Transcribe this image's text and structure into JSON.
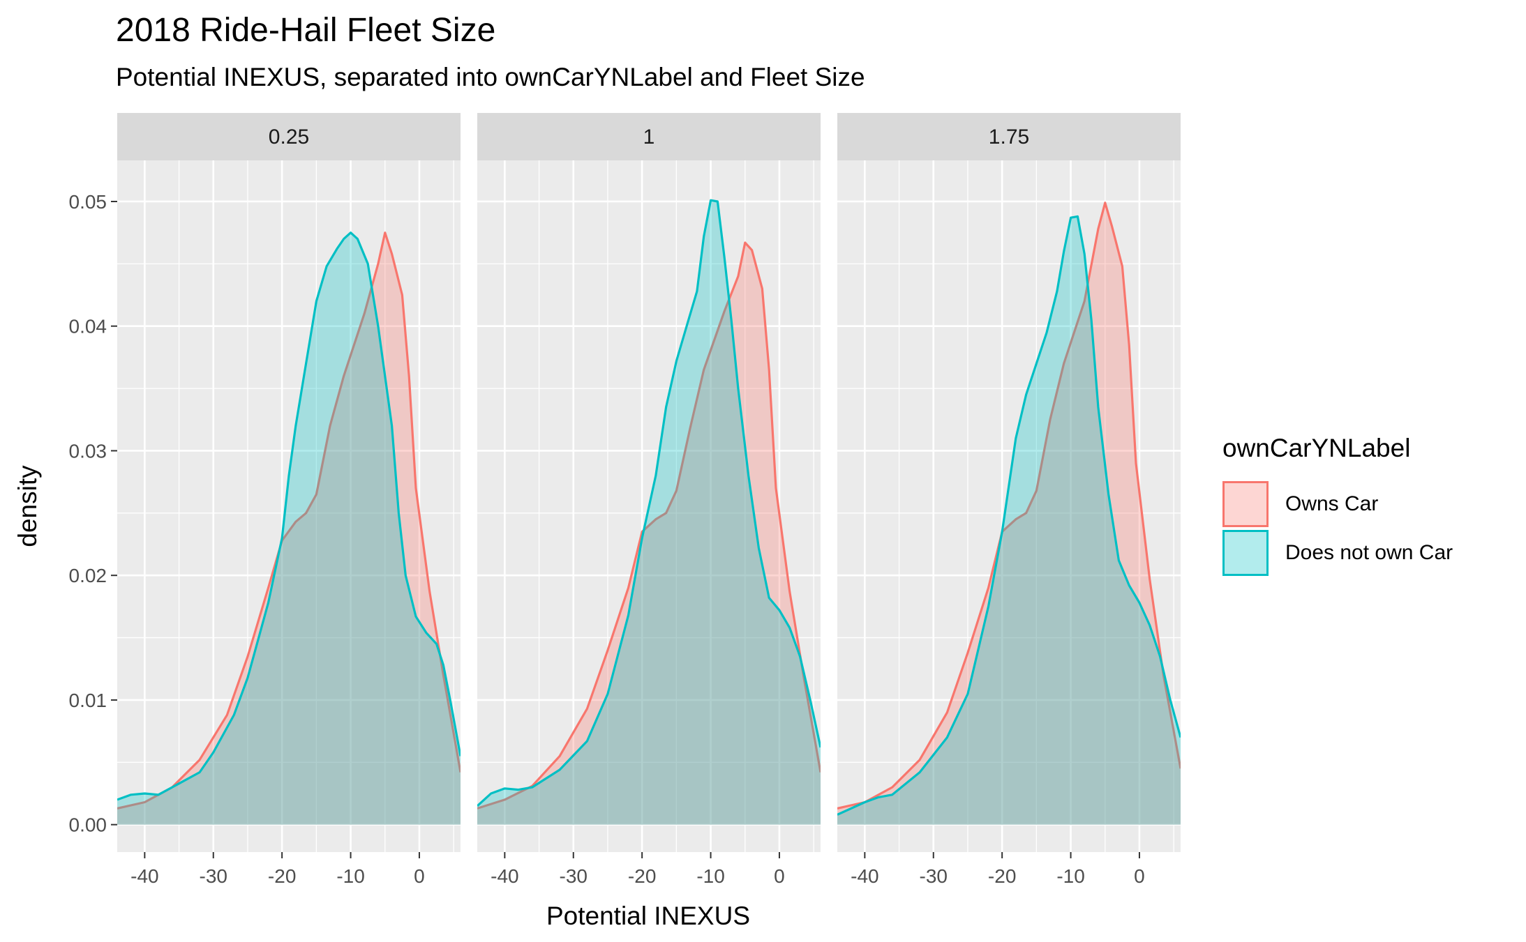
{
  "chart_data": {
    "type": "area",
    "title": "2018 Ride-Hail Fleet Size",
    "subtitle": "Potential INEXUS, separated into ownCarYNLabel and Fleet Size",
    "xlabel": "Potential INEXUS",
    "ylabel": "density",
    "xlim": [
      -44,
      6
    ],
    "ylim": [
      -0.0022,
      0.0533
    ],
    "x_ticks": [
      -40,
      -30,
      -20,
      -10,
      0
    ],
    "y_ticks": [
      0.0,
      0.01,
      0.02,
      0.03,
      0.04,
      0.05
    ],
    "x_tick_labels": [
      "-40",
      "-30",
      "-20",
      "-10",
      "0"
    ],
    "y_tick_labels": [
      "0.00",
      "0.01",
      "0.02",
      "0.03",
      "0.04",
      "0.05"
    ],
    "grid": true,
    "legend": {
      "title": "ownCarYNLabel",
      "position": "right",
      "entries": [
        "Owns Car",
        "Does not own Car"
      ]
    },
    "series_colors": {
      "Owns Car": "#F8766D",
      "Does not own Car": "#00BFC4"
    },
    "panels": [
      {
        "label": "0.25",
        "series": [
          {
            "name": "Owns Car",
            "points": [
              [
                -44,
                0.0013
              ],
              [
                -40,
                0.0018
              ],
              [
                -36,
                0.003
              ],
              [
                -32,
                0.0052
              ],
              [
                -28,
                0.0088
              ],
              [
                -25,
                0.0135
              ],
              [
                -22,
                0.019
              ],
              [
                -20,
                0.0228
              ],
              [
                -18,
                0.0243
              ],
              [
                -16.5,
                0.025
              ],
              [
                -15,
                0.0265
              ],
              [
                -13,
                0.032
              ],
              [
                -11,
                0.036
              ],
              [
                -8,
                0.041
              ],
              [
                -6,
                0.045
              ],
              [
                -5,
                0.0475
              ],
              [
                -4,
                0.0458
              ],
              [
                -2.5,
                0.0425
              ],
              [
                -1.5,
                0.036
              ],
              [
                -0.5,
                0.027
              ],
              [
                1.5,
                0.0187
              ],
              [
                3.5,
                0.012
              ],
              [
                6,
                0.0042
              ]
            ]
          },
          {
            "name": "Does not own Car",
            "points": [
              [
                -44,
                0.002
              ],
              [
                -42,
                0.0024
              ],
              [
                -40,
                0.0025
              ],
              [
                -38,
                0.0024
              ],
              [
                -36,
                0.003
              ],
              [
                -32,
                0.0042
              ],
              [
                -30,
                0.0058
              ],
              [
                -27,
                0.0088
              ],
              [
                -25,
                0.0118
              ],
              [
                -22,
                0.0178
              ],
              [
                -20,
                0.023
              ],
              [
                -19,
                0.028
              ],
              [
                -18,
                0.032
              ],
              [
                -16.5,
                0.037
              ],
              [
                -15,
                0.042
              ],
              [
                -13.5,
                0.0448
              ],
              [
                -12,
                0.0462
              ],
              [
                -11,
                0.047
              ],
              [
                -10,
                0.0475
              ],
              [
                -9,
                0.047
              ],
              [
                -7.5,
                0.045
              ],
              [
                -6,
                0.04
              ],
              [
                -4,
                0.032
              ],
              [
                -3,
                0.025
              ],
              [
                -2,
                0.02
              ],
              [
                -0.5,
                0.0167
              ],
              [
                1,
                0.0154
              ],
              [
                2.5,
                0.0145
              ],
              [
                3.5,
                0.0128
              ],
              [
                4.5,
                0.01
              ],
              [
                6,
                0.0055
              ]
            ]
          }
        ]
      },
      {
        "label": "1",
        "series": [
          {
            "name": "Owns Car",
            "points": [
              [
                -44,
                0.0013
              ],
              [
                -40,
                0.002
              ],
              [
                -36,
                0.0031
              ],
              [
                -32,
                0.0055
              ],
              [
                -28,
                0.0093
              ],
              [
                -25,
                0.014
              ],
              [
                -22,
                0.019
              ],
              [
                -20,
                0.0235
              ],
              [
                -18,
                0.0245
              ],
              [
                -16.5,
                0.025
              ],
              [
                -15,
                0.0268
              ],
              [
                -13,
                0.0318
              ],
              [
                -11,
                0.0365
              ],
              [
                -8,
                0.0412
              ],
              [
                -6,
                0.044
              ],
              [
                -5,
                0.0467
              ],
              [
                -4,
                0.0461
              ],
              [
                -2.5,
                0.043
              ],
              [
                -1.5,
                0.0365
              ],
              [
                -0.5,
                0.027
              ],
              [
                1.5,
                0.0187
              ],
              [
                3.5,
                0.012
              ],
              [
                6,
                0.0042
              ]
            ]
          },
          {
            "name": "Does not own Car",
            "points": [
              [
                -44,
                0.0015
              ],
              [
                -42,
                0.0025
              ],
              [
                -40,
                0.0029
              ],
              [
                -38,
                0.0028
              ],
              [
                -36,
                0.003
              ],
              [
                -32,
                0.0044
              ],
              [
                -28,
                0.0067
              ],
              [
                -25,
                0.0105
              ],
              [
                -22,
                0.0168
              ],
              [
                -20,
                0.023
              ],
              [
                -18,
                0.028
              ],
              [
                -16.5,
                0.0335
              ],
              [
                -15,
                0.0372
              ],
              [
                -13.5,
                0.04
              ],
              [
                -12,
                0.0428
              ],
              [
                -11,
                0.0472
              ],
              [
                -10,
                0.0501
              ],
              [
                -9,
                0.05
              ],
              [
                -8,
                0.0455
              ],
              [
                -7,
                0.0405
              ],
              [
                -6,
                0.035
              ],
              [
                -4.5,
                0.028
              ],
              [
                -3,
                0.0222
              ],
              [
                -1.5,
                0.0182
              ],
              [
                0,
                0.0172
              ],
              [
                1.5,
                0.0158
              ],
              [
                3,
                0.0135
              ],
              [
                4.5,
                0.01
              ],
              [
                6,
                0.0062
              ]
            ]
          }
        ]
      },
      {
        "label": "1.75",
        "series": [
          {
            "name": "Owns Car",
            "points": [
              [
                -44,
                0.0013
              ],
              [
                -40,
                0.0018
              ],
              [
                -36,
                0.003
              ],
              [
                -32,
                0.0052
              ],
              [
                -28,
                0.009
              ],
              [
                -25,
                0.0138
              ],
              [
                -22,
                0.019
              ],
              [
                -20,
                0.0235
              ],
              [
                -18,
                0.0245
              ],
              [
                -16.5,
                0.025
              ],
              [
                -15,
                0.0268
              ],
              [
                -13,
                0.0325
              ],
              [
                -11,
                0.037
              ],
              [
                -8,
                0.042
              ],
              [
                -6,
                0.0478
              ],
              [
                -5,
                0.0499
              ],
              [
                -4,
                0.048
              ],
              [
                -2.5,
                0.0448
              ],
              [
                -1.5,
                0.0385
              ],
              [
                -0.5,
                0.029
              ],
              [
                1.5,
                0.0197
              ],
              [
                3.5,
                0.012
              ],
              [
                6,
                0.0045
              ]
            ]
          },
          {
            "name": "Does not own Car",
            "points": [
              [
                -44,
                0.0008
              ],
              [
                -40,
                0.0018
              ],
              [
                -38,
                0.0022
              ],
              [
                -36,
                0.0024
              ],
              [
                -32,
                0.0042
              ],
              [
                -28,
                0.007
              ],
              [
                -25,
                0.0105
              ],
              [
                -22,
                0.0175
              ],
              [
                -20,
                0.0235
              ],
              [
                -18,
                0.031
              ],
              [
                -16.5,
                0.0345
              ],
              [
                -15,
                0.037
              ],
              [
                -13.5,
                0.0395
              ],
              [
                -12,
                0.0428
              ],
              [
                -11,
                0.046
              ],
              [
                -10,
                0.0487
              ],
              [
                -9,
                0.0488
              ],
              [
                -8,
                0.0458
              ],
              [
                -7,
                0.0405
              ],
              [
                -6,
                0.0335
              ],
              [
                -4.5,
                0.0265
              ],
              [
                -3,
                0.0212
              ],
              [
                -1.5,
                0.0192
              ],
              [
                0,
                0.0178
              ],
              [
                1.5,
                0.016
              ],
              [
                3,
                0.0135
              ],
              [
                4.5,
                0.01
              ],
              [
                6,
                0.007
              ]
            ]
          }
        ]
      }
    ]
  }
}
